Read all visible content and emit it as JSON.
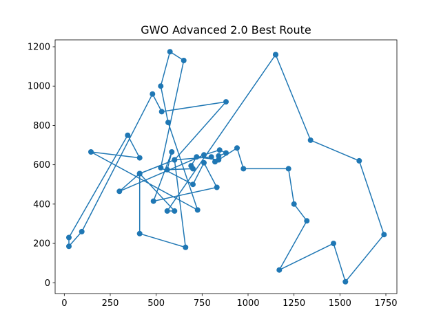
{
  "chart_data": {
    "type": "line",
    "title": "GWO Advanced 2.0 Best Route",
    "xlabel": "",
    "ylabel": "",
    "xlim": [
      -50,
      1810
    ],
    "ylim": [
      -55,
      1235
    ],
    "xticks": [
      0,
      250,
      500,
      750,
      1000,
      1250,
      1500,
      1750
    ],
    "yticks": [
      0,
      200,
      400,
      600,
      800,
      1000,
      1200
    ],
    "grid": false,
    "marker": "circle",
    "color": "#1f77b4",
    "route": [
      [
        1150,
        1160
      ],
      [
        1340,
        725
      ],
      [
        1605,
        620
      ],
      [
        1740,
        245
      ],
      [
        1530,
        5
      ],
      [
        1465,
        200
      ],
      [
        1170,
        65
      ],
      [
        1320,
        315
      ],
      [
        1250,
        400
      ],
      [
        1220,
        580
      ],
      [
        975,
        580
      ],
      [
        940,
        685
      ],
      [
        840,
        625
      ],
      [
        720,
        640
      ],
      [
        690,
        595
      ],
      [
        700,
        580
      ],
      [
        560,
        575
      ],
      [
        585,
        665
      ],
      [
        485,
        415
      ],
      [
        830,
        485
      ],
      [
        760,
        610
      ],
      [
        700,
        500
      ],
      [
        525,
        585
      ],
      [
        650,
        1130
      ],
      [
        575,
        1175
      ],
      [
        525,
        1000
      ],
      [
        565,
        815
      ],
      [
        725,
        370
      ],
      [
        145,
        665
      ],
      [
        410,
        635
      ],
      [
        345,
        750
      ],
      [
        25,
        230
      ],
      [
        25,
        185
      ],
      [
        95,
        260
      ],
      [
        480,
        960
      ],
      [
        530,
        870
      ],
      [
        880,
        920
      ],
      [
        600,
        625
      ],
      [
        410,
        555
      ],
      [
        410,
        250
      ],
      [
        660,
        180
      ],
      [
        600,
        625
      ],
      [
        800,
        640
      ],
      [
        820,
        615
      ],
      [
        840,
        645
      ],
      [
        880,
        660
      ],
      [
        845,
        675
      ],
      [
        760,
        650
      ],
      [
        300,
        465
      ],
      [
        410,
        555
      ],
      [
        600,
        365
      ],
      [
        560,
        365
      ],
      [
        1150,
        1160
      ]
    ]
  }
}
